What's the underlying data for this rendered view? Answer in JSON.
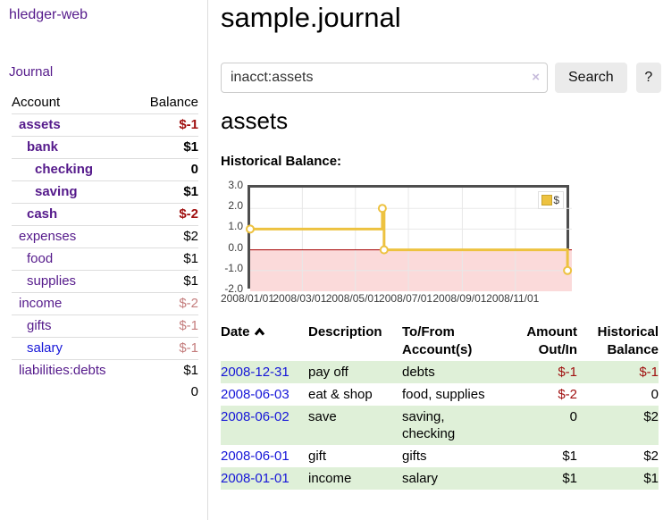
{
  "sidebar": {
    "brand": "hledger-web",
    "nav": {
      "journal": "Journal"
    },
    "accounts_table": {
      "headers": {
        "account": "Account",
        "balance": "Balance"
      },
      "rows": [
        {
          "name": "assets",
          "balance": "$-1",
          "indent": 1,
          "bold": true,
          "link_color": "purple",
          "balance_class": "neg-strong"
        },
        {
          "name": "bank",
          "balance": "$1",
          "indent": 2,
          "bold": true,
          "link_color": "purple",
          "balance_class": ""
        },
        {
          "name": "checking",
          "balance": "0",
          "indent": 3,
          "bold": true,
          "link_color": "purple",
          "balance_class": ""
        },
        {
          "name": "saving",
          "balance": "$1",
          "indent": 3,
          "bold": true,
          "link_color": "purple",
          "balance_class": ""
        },
        {
          "name": "cash",
          "balance": "$-2",
          "indent": 2,
          "bold": true,
          "link_color": "purple",
          "balance_class": "neg-strong"
        },
        {
          "name": "expenses",
          "balance": "$2",
          "indent": 1,
          "bold": false,
          "link_color": "purple",
          "balance_class": ""
        },
        {
          "name": "food",
          "balance": "$1",
          "indent": 2,
          "bold": false,
          "link_color": "purple",
          "balance_class": ""
        },
        {
          "name": "supplies",
          "balance": "$1",
          "indent": 2,
          "bold": false,
          "link_color": "purple",
          "balance_class": ""
        },
        {
          "name": "income",
          "balance": "$-2",
          "indent": 1,
          "bold": false,
          "link_color": "purple",
          "balance_class": "neg-soft"
        },
        {
          "name": "gifts",
          "balance": "$-1",
          "indent": 2,
          "bold": false,
          "link_color": "purple",
          "balance_class": "neg-soft"
        },
        {
          "name": "salary",
          "balance": "$-1",
          "indent": 2,
          "bold": false,
          "link_color": "blue",
          "balance_class": "neg-soft"
        },
        {
          "name": "liabilities:debts",
          "balance": "$1",
          "indent": 1,
          "bold": false,
          "link_color": "purple",
          "balance_class": ""
        }
      ],
      "total": "0"
    }
  },
  "header": {
    "title": "sample.journal"
  },
  "search": {
    "query": "inacct:assets",
    "clear_icon": "×",
    "button": "Search",
    "help_button": "?"
  },
  "account_page": {
    "heading": "assets",
    "chart_label": "Historical Balance:"
  },
  "chart_data": {
    "type": "line",
    "step": true,
    "title": "Historical Balance",
    "series": [
      {
        "name": "$",
        "color": "#edc240",
        "points": [
          [
            "2008/01/01",
            1.0
          ],
          [
            "2008/06/01",
            2.0
          ],
          [
            "2008/06/03",
            0.0
          ],
          [
            "2008/12/31",
            -1.0
          ]
        ]
      }
    ],
    "xlim": [
      "2008/01/01",
      "2009/01/05"
    ],
    "ylim": [
      -2.0,
      3.0
    ],
    "yticks": [
      3.0,
      2.0,
      1.0,
      0.0,
      -1.0,
      -2.0
    ],
    "xticks": [
      "2008/01/01",
      "2008/03/01",
      "2008/05/01",
      "2008/07/01",
      "2008/09/01",
      "2008/11/01"
    ],
    "grid": true,
    "legend_position": "top-right",
    "zero_line_color": "#a40000",
    "negative_region_fill": "#fbdada"
  },
  "register": {
    "headers": [
      "Date",
      "Description",
      "To/From Account(s)",
      "Amount Out/In",
      "Historical Balance"
    ],
    "rows": [
      {
        "date": "2008-12-31",
        "description": "pay off",
        "accounts_lines": [
          "debts"
        ],
        "amount": "$-1",
        "balance": "$-1",
        "amount_class": "neg-strong",
        "balance_class": "neg-strong",
        "shaded": true
      },
      {
        "date": "2008-06-03",
        "description": "eat & shop",
        "accounts_lines": [
          "food, supplies"
        ],
        "amount": "$-2",
        "balance": "0",
        "amount_class": "neg-strong",
        "balance_class": "",
        "shaded": false
      },
      {
        "date": "2008-06-02",
        "description": "save",
        "accounts_lines": [
          "saving,",
          "checking"
        ],
        "amount": "0",
        "balance": "$2",
        "amount_class": "",
        "balance_class": "",
        "shaded": true
      },
      {
        "date": "2008-06-01",
        "description": "gift",
        "accounts_lines": [
          "gifts"
        ],
        "amount": "$1",
        "balance": "$2",
        "amount_class": "",
        "balance_class": "",
        "shaded": false
      },
      {
        "date": "2008-01-01",
        "description": "income",
        "accounts_lines": [
          "salary"
        ],
        "amount": "$1",
        "balance": "$1",
        "amount_class": "",
        "balance_class": "",
        "shaded": true
      }
    ]
  }
}
